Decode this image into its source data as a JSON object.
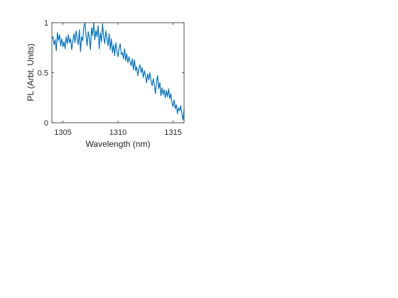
{
  "chart_data": {
    "type": "line",
    "title": "",
    "xlabel": "Wavelength (nm)",
    "ylabel": "PL (Arbt. Units)",
    "xlim": [
      1304,
      1316
    ],
    "ylim": [
      0,
      1
    ],
    "xticks": [
      1305,
      1310,
      1315
    ],
    "xtick_labels": [
      "1305",
      "1310",
      "1315"
    ],
    "yticks": [
      0,
      0.5,
      1
    ],
    "ytick_labels": [
      "0",
      "0.5",
      "1"
    ],
    "grid": false,
    "legend": "none",
    "line_color": "#0072BD",
    "series": [
      {
        "x": [
          1304.0,
          1304.1,
          1304.2,
          1304.3,
          1304.4,
          1304.5,
          1304.6,
          1304.7,
          1304.8,
          1304.9,
          1305.0,
          1305.1,
          1305.2,
          1305.3,
          1305.4,
          1305.5,
          1305.6,
          1305.7,
          1305.8,
          1305.9,
          1306.0,
          1306.1,
          1306.2,
          1306.3,
          1306.4,
          1306.5,
          1306.6,
          1306.7,
          1306.8,
          1306.9,
          1307.0,
          1307.1,
          1307.2,
          1307.3,
          1307.4,
          1307.5,
          1307.6,
          1307.7,
          1307.8,
          1307.9,
          1308.0,
          1308.1,
          1308.2,
          1308.3,
          1308.4,
          1308.5,
          1308.6,
          1308.7,
          1308.8,
          1308.9,
          1309.0,
          1309.1,
          1309.2,
          1309.3,
          1309.4,
          1309.5,
          1309.6,
          1309.7,
          1309.8,
          1309.9,
          1310.0,
          1310.1,
          1310.2,
          1310.3,
          1310.4,
          1310.5,
          1310.6,
          1310.7,
          1310.8,
          1310.9,
          1311.0,
          1311.1,
          1311.2,
          1311.3,
          1311.4,
          1311.5,
          1311.6,
          1311.7,
          1311.8,
          1311.9,
          1312.0,
          1312.1,
          1312.2,
          1312.3,
          1312.4,
          1312.5,
          1312.6,
          1312.7,
          1312.8,
          1312.9,
          1313.0,
          1313.1,
          1313.2,
          1313.3,
          1313.4,
          1313.5,
          1313.6,
          1313.7,
          1313.8,
          1313.9,
          1314.0,
          1314.1,
          1314.2,
          1314.3,
          1314.4,
          1314.5,
          1314.6,
          1314.7,
          1314.8,
          1314.9,
          1315.0,
          1315.1,
          1315.2,
          1315.3,
          1315.4,
          1315.5,
          1315.6,
          1315.7,
          1315.8,
          1315.9,
          1316.0
        ],
        "y": [
          0.85,
          0.86,
          0.78,
          0.83,
          0.72,
          0.9,
          0.82,
          0.88,
          0.77,
          0.84,
          0.76,
          0.81,
          0.74,
          0.86,
          0.79,
          0.88,
          0.8,
          0.84,
          0.73,
          0.82,
          0.89,
          0.8,
          0.92,
          0.84,
          0.78,
          0.93,
          0.71,
          0.86,
          0.82,
          0.96,
          1.0,
          0.88,
          0.77,
          0.91,
          0.85,
          0.73,
          0.95,
          0.87,
          1.0,
          0.83,
          0.92,
          0.86,
          0.97,
          0.74,
          0.9,
          0.81,
          0.99,
          0.86,
          0.79,
          0.92,
          0.84,
          0.77,
          0.89,
          0.73,
          0.84,
          0.7,
          0.78,
          0.67,
          0.8,
          0.72,
          0.66,
          0.74,
          0.79,
          0.68,
          0.7,
          0.64,
          0.74,
          0.62,
          0.69,
          0.6,
          0.66,
          0.61,
          0.57,
          0.64,
          0.53,
          0.63,
          0.52,
          0.56,
          0.47,
          0.54,
          0.58,
          0.5,
          0.55,
          0.45,
          0.52,
          0.47,
          0.4,
          0.49,
          0.43,
          0.5,
          0.42,
          0.37,
          0.44,
          0.38,
          0.29,
          0.41,
          0.47,
          0.34,
          0.4,
          0.27,
          0.35,
          0.28,
          0.33,
          0.25,
          0.32,
          0.26,
          0.34,
          0.24,
          0.29,
          0.2,
          0.16,
          0.23,
          0.14,
          0.18,
          0.09,
          0.15,
          0.12,
          0.17,
          0.09,
          0.03,
          0.13
        ]
      }
    ]
  }
}
